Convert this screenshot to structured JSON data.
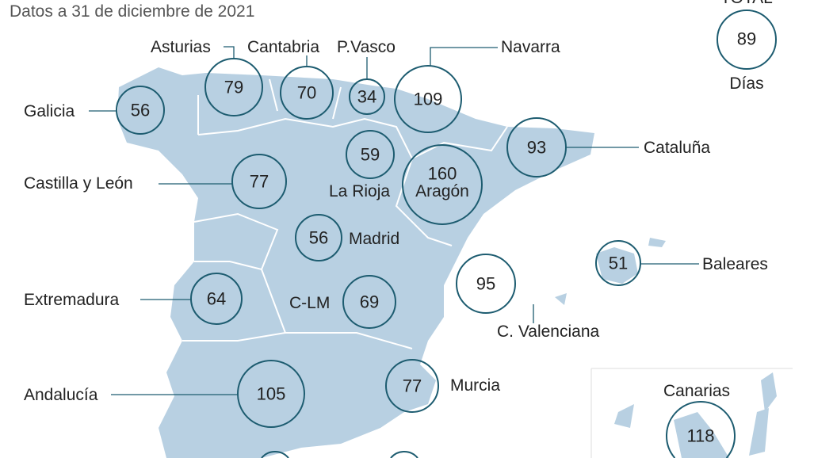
{
  "subtitle": "Datos a 31 de diciembre de 2021",
  "total": {
    "label": "TOTAL",
    "value": "89",
    "unit": "Días"
  },
  "colors": {
    "land": "#b8d0e2",
    "circle": "#1d5c70"
  },
  "regions": [
    {
      "name": "Galicia",
      "value": "56"
    },
    {
      "name": "Asturias",
      "value": "79"
    },
    {
      "name": "Cantabria",
      "value": "70"
    },
    {
      "name": "P.Vasco",
      "value": "34"
    },
    {
      "name": "Navarra",
      "value": "109"
    },
    {
      "name": "La Rioja",
      "value": "59"
    },
    {
      "name": "Aragón",
      "value": "160"
    },
    {
      "name": "Cataluña",
      "value": "93"
    },
    {
      "name": "Castilla y León",
      "value": "77"
    },
    {
      "name": "Madrid",
      "value": "56"
    },
    {
      "name": "Extremadura",
      "value": "64"
    },
    {
      "name": "C-LM",
      "value": "69"
    },
    {
      "name": "C. Valenciana",
      "value": "95"
    },
    {
      "name": "Baleares",
      "value": "51"
    },
    {
      "name": "Andalucía",
      "value": "105"
    },
    {
      "name": "Murcia",
      "value": "77"
    },
    {
      "name": "Canarias",
      "value": "118"
    }
  ]
}
